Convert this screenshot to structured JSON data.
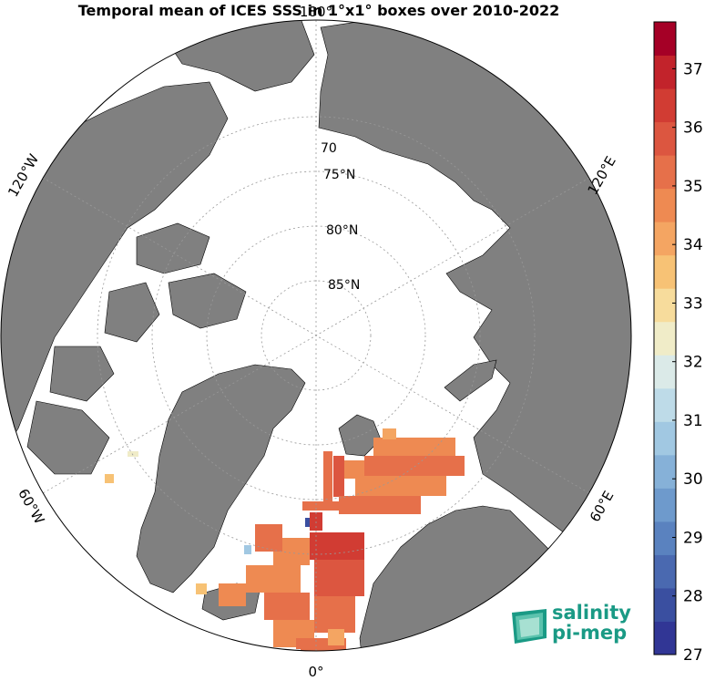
{
  "title": "Temporal mean of ICES SSS in 1°x1° boxes over 2010-2022",
  "map": {
    "projection": "north polar stereographic",
    "latitude_labels": [
      {
        "lat": 70,
        "text": "70"
      },
      {
        "lat": 75,
        "text": "75°N"
      },
      {
        "lat": 80,
        "text": "80°N"
      },
      {
        "lat": 85,
        "text": "85°N"
      }
    ],
    "longitude_labels": [
      {
        "lon": 0,
        "text": "0°"
      },
      {
        "lon": 60,
        "text": "60°E"
      },
      {
        "lon": 120,
        "text": "120°E"
      },
      {
        "lon": 180,
        "text": "180°"
      },
      {
        "lon": -120,
        "text": "120°W"
      },
      {
        "lon": -60,
        "text": "60°W"
      }
    ],
    "land_color": "#808080",
    "ocean_color": "#ffffff"
  },
  "colorbar": {
    "min": 27,
    "max": 37.8,
    "ticks": [
      "27",
      "28",
      "29",
      "30",
      "31",
      "32",
      "33",
      "34",
      "35",
      "36",
      "37"
    ],
    "colors": [
      "#313695",
      "#3a4fa0",
      "#4a69b0",
      "#5a82bf",
      "#6e9acc",
      "#86b1d8",
      "#a1c8e2",
      "#bedbe8",
      "#dbeae8",
      "#f0ecc8",
      "#f7dc9c",
      "#f7c275",
      "#f4a562",
      "#ee8a52",
      "#e6704a",
      "#dc5640",
      "#d13c33",
      "#c2232b",
      "#a50026"
    ]
  },
  "logo": {
    "line1": "salinity",
    "line2": "pi-mep",
    "color": "#1a9a85"
  }
}
